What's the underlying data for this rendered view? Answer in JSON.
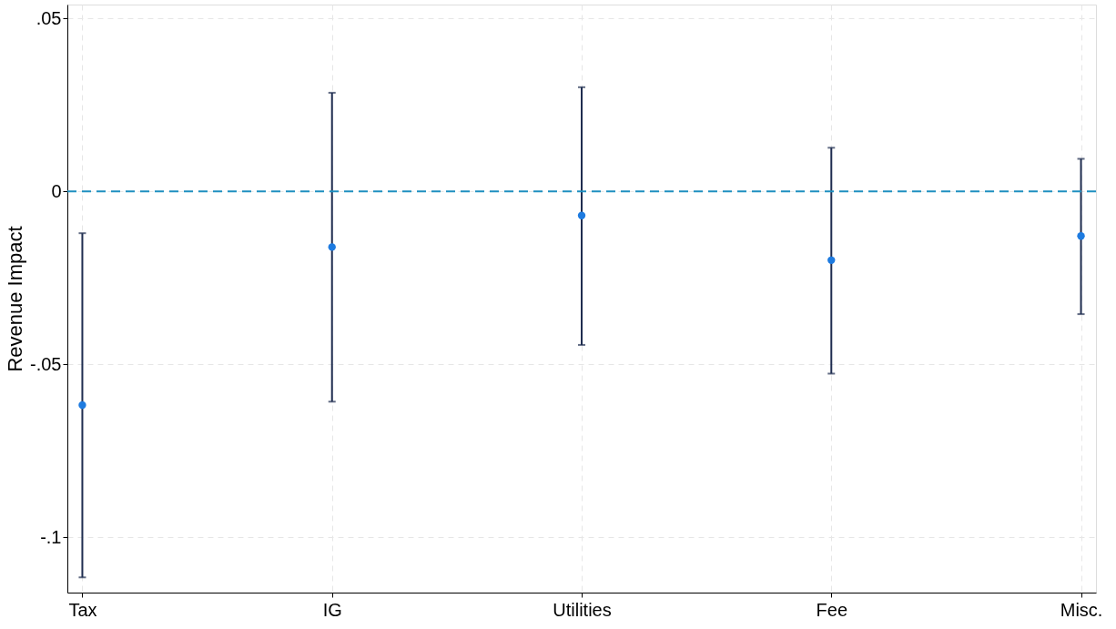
{
  "chart_data": {
    "type": "scatter",
    "ylabel": "Revenue Impact",
    "categories": [
      "Tax",
      "IG",
      "Utilities",
      "Fee",
      "Misc."
    ],
    "series": [
      {
        "color": "#1e7be0",
        "values": [
          -0.0618,
          -0.0161,
          -0.007,
          -0.0199,
          -0.0129
        ],
        "errors": [
          [
            -0.1116,
            -0.0121
          ],
          [
            -0.0608,
            0.0285
          ],
          [
            -0.0444,
            0.0301
          ],
          [
            -0.0527,
            0.0126
          ],
          [
            -0.0355,
            0.0094
          ]
        ]
      }
    ],
    "ylim": [
      -0.116,
      0.054
    ],
    "yticks": [
      {
        "value": -0.1,
        "label": "-.1"
      },
      {
        "value": -0.05,
        "label": "-.05"
      },
      {
        "value": 0,
        "label": "0"
      },
      {
        "value": 0.05,
        "label": ".05"
      }
    ],
    "ref_lines": [
      {
        "axis": "y",
        "value": 0,
        "color": "#1f8fc0",
        "line_style": "dashed"
      }
    ],
    "grid": true,
    "marker": "circle"
  }
}
